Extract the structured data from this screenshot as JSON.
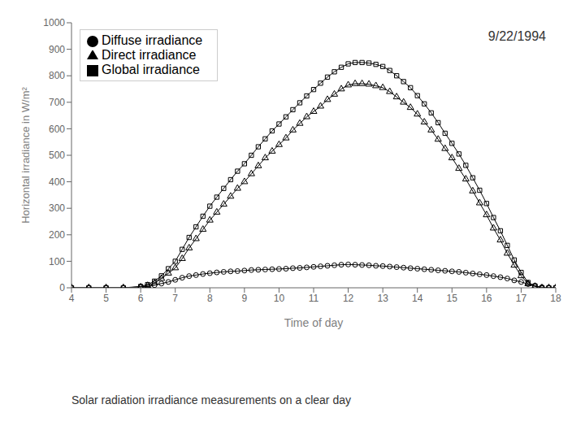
{
  "chart_data": {
    "type": "line",
    "title": "9/22/1994",
    "caption": "Solar radiation irradiance measurements on a clear day",
    "x_label": "Time of day",
    "y_label": "Horizontal irradiance  in W/m²",
    "xlim": [
      4,
      18
    ],
    "ylim": [
      0,
      1000
    ],
    "xticks": [
      4,
      5,
      6,
      7,
      8,
      9,
      10,
      11,
      12,
      13,
      14,
      15,
      16,
      17,
      18
    ],
    "yticks": [
      0,
      100,
      200,
      300,
      400,
      500,
      600,
      700,
      800,
      900,
      1000
    ],
    "grid": false,
    "legend": "upper left",
    "x": [
      4.0,
      4.5,
      5.0,
      5.5,
      6.0,
      6.2,
      6.4,
      6.6,
      6.8,
      7.0,
      7.2,
      7.4,
      7.6,
      7.8,
      8.0,
      8.2,
      8.4,
      8.6,
      8.8,
      9.0,
      9.2,
      9.4,
      9.6,
      9.8,
      10.0,
      10.2,
      10.4,
      10.6,
      10.8,
      11.0,
      11.2,
      11.4,
      11.6,
      11.8,
      12.0,
      12.2,
      12.4,
      12.6,
      12.8,
      13.0,
      13.2,
      13.4,
      13.6,
      13.8,
      14.0,
      14.2,
      14.4,
      14.6,
      14.8,
      15.0,
      15.2,
      15.4,
      15.6,
      15.8,
      16.0,
      16.2,
      16.4,
      16.6,
      16.8,
      17.0,
      17.2,
      17.4,
      17.6,
      17.8,
      18.0
    ],
    "series": [
      {
        "name": "Direct irradiance",
        "color": "#000000",
        "marker": "triangle",
        "values": [
          0,
          0,
          0,
          0,
          3,
          8,
          18,
          35,
          55,
          75,
          110,
          150,
          185,
          220,
          255,
          285,
          315,
          345,
          375,
          400,
          430,
          460,
          490,
          515,
          540,
          565,
          595,
          620,
          645,
          665,
          685,
          710,
          730,
          750,
          765,
          770,
          770,
          768,
          762,
          755,
          740,
          720,
          700,
          680,
          655,
          625,
          595,
          560,
          525,
          490,
          450,
          410,
          365,
          320,
          275,
          225,
          180,
          130,
          85,
          45,
          15,
          5,
          0,
          0,
          0
        ]
      },
      {
        "name": "Diffuse irradiance",
        "color": "#000000",
        "marker": "circle",
        "values": [
          0,
          0,
          0,
          0,
          3,
          5,
          10,
          16,
          22,
          30,
          38,
          44,
          48,
          52,
          55,
          58,
          60,
          62,
          63,
          65,
          67,
          68,
          69,
          70,
          71,
          72,
          74,
          75,
          77,
          79,
          81,
          83,
          85,
          87,
          88,
          87,
          86,
          85,
          83,
          82,
          80,
          78,
          76,
          74,
          72,
          70,
          68,
          66,
          64,
          62,
          60,
          57,
          54,
          51,
          48,
          44,
          40,
          35,
          28,
          22,
          14,
          7,
          2,
          0,
          0
        ]
      },
      {
        "name": "Global irradiance",
        "color": "#000000",
        "marker": "square",
        "values": [
          0,
          0,
          0,
          0,
          5,
          12,
          25,
          45,
          72,
          100,
          145,
          190,
          230,
          270,
          308,
          342,
          375,
          408,
          440,
          468,
          500,
          532,
          562,
          592,
          618,
          645,
          672,
          698,
          724,
          748,
          772,
          795,
          815,
          832,
          845,
          850,
          850,
          848,
          843,
          835,
          820,
          800,
          778,
          755,
          725,
          694,
          660,
          623,
          583,
          545,
          505,
          462,
          415,
          368,
          318,
          265,
          215,
          160,
          105,
          58,
          20,
          7,
          0,
          0,
          0
        ]
      }
    ]
  }
}
